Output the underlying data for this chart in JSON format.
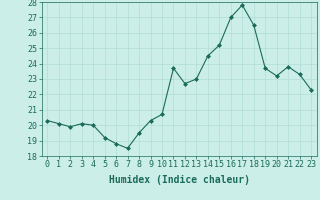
{
  "x": [
    0,
    1,
    2,
    3,
    4,
    5,
    6,
    7,
    8,
    9,
    10,
    11,
    12,
    13,
    14,
    15,
    16,
    17,
    18,
    19,
    20,
    21,
    22,
    23
  ],
  "y": [
    20.3,
    20.1,
    19.9,
    20.1,
    20.0,
    19.2,
    18.8,
    18.5,
    19.5,
    20.3,
    20.7,
    23.7,
    22.7,
    23.0,
    24.5,
    25.2,
    27.0,
    27.8,
    26.5,
    23.7,
    23.2,
    23.8,
    23.3,
    22.3
  ],
  "line_color": "#1a6b5a",
  "marker": "D",
  "marker_size": 2,
  "bg_color": "#cceee8",
  "grid_color": "#b0ddd6",
  "xlabel": "Humidex (Indice chaleur)",
  "ylim": [
    18,
    28
  ],
  "yticks": [
    18,
    19,
    20,
    21,
    22,
    23,
    24,
    25,
    26,
    27,
    28
  ],
  "xticks": [
    0,
    1,
    2,
    3,
    4,
    5,
    6,
    7,
    8,
    9,
    10,
    11,
    12,
    13,
    14,
    15,
    16,
    17,
    18,
    19,
    20,
    21,
    22,
    23
  ],
  "xlabel_fontsize": 7,
  "tick_fontsize": 6
}
